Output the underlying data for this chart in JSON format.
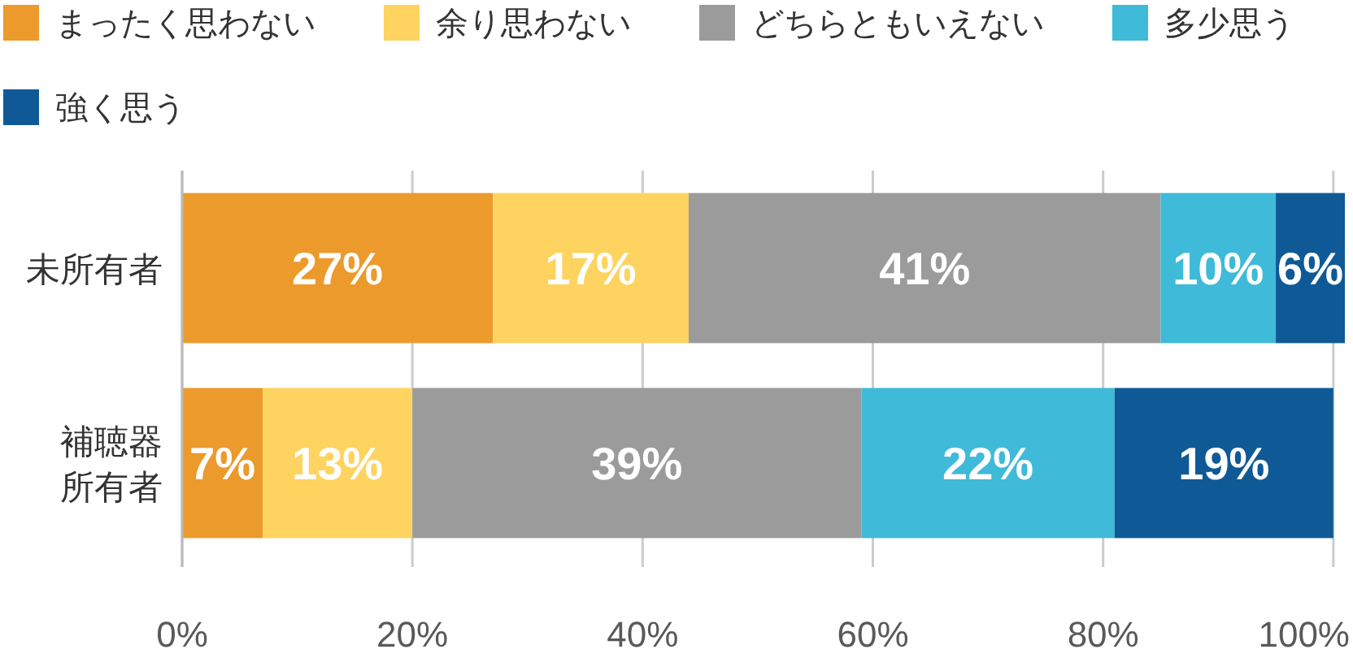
{
  "chart_data": {
    "type": "bar",
    "orientation": "horizontal",
    "stacked": true,
    "categories": [
      "未所有者",
      "補聴器所有者"
    ],
    "series": [
      {
        "name": "まったく思わない",
        "color": "#ec9a2b",
        "values": [
          27,
          7
        ],
        "value_labels": [
          "27%",
          "7%"
        ]
      },
      {
        "name": "余り思わない",
        "color": "#fed35f",
        "values": [
          17,
          13
        ],
        "value_labels": [
          "17%",
          "13%"
        ]
      },
      {
        "name": "どちらともいえない",
        "color": "#9b9b9b",
        "values": [
          41,
          39
        ],
        "value_labels": [
          "41%",
          "39%"
        ]
      },
      {
        "name": "多少思う",
        "color": "#3fbad8",
        "values": [
          10,
          22
        ],
        "value_labels": [
          "10%",
          "22%"
        ]
      },
      {
        "name": "強く思う",
        "color": "#0f5a96",
        "values": [
          6,
          19
        ],
        "value_labels": [
          "6%",
          "19%"
        ]
      }
    ],
    "xlim": [
      0,
      101
    ],
    "xticks": [
      {
        "value": 0,
        "label": "0%"
      },
      {
        "value": 20,
        "label": "20%"
      },
      {
        "value": 40,
        "label": "40%"
      },
      {
        "value": 60,
        "label": "60%"
      },
      {
        "value": 80,
        "label": "80%"
      },
      {
        "value": 100,
        "label": "100%"
      }
    ],
    "grid": "x",
    "legend": "top left"
  }
}
